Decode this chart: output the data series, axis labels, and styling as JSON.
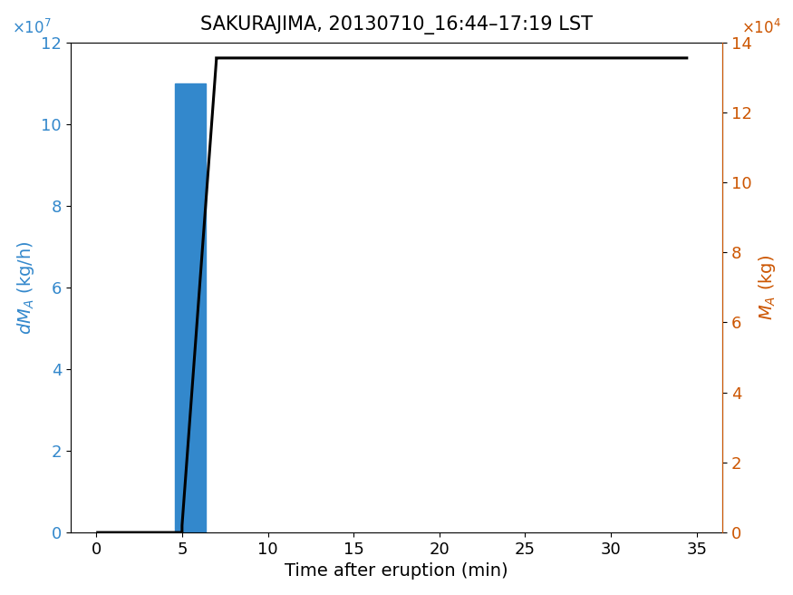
{
  "title": "SAKURAJIMA, 20130710_16:44–17:19 LST",
  "xlabel": "Time after eruption (min)",
  "ylabel_left": "dM_A (kg/h)",
  "ylabel_right": "M_A (kg)",
  "xlim": [
    -1.5,
    36.5
  ],
  "ylim_left": [
    0,
    120000000.0
  ],
  "ylim_right": [
    0,
    140000.0
  ],
  "bar_x": 5.5,
  "bar_width": 1.8,
  "bar_height": 110000000.0,
  "bar_color": "#3388cc",
  "line_x": [
    0,
    5.0,
    5.0,
    7.0,
    7.0,
    34.5
  ],
  "line_y": [
    0,
    0,
    2000,
    135000.0,
    135500.0,
    135500.0
  ],
  "line_color": "#000000",
  "line_width": 2.2,
  "left_axis_color": "#3388cc",
  "right_axis_color": "#cc5500",
  "title_fontsize": 15,
  "label_fontsize": 14,
  "tick_fontsize": 13,
  "xticks": [
    0,
    5,
    10,
    15,
    20,
    25,
    30,
    35
  ],
  "yticks_left": [
    0,
    20000000.0,
    40000000.0,
    60000000.0,
    80000000.0,
    100000000.0,
    120000000.0
  ],
  "yticks_right": [
    0,
    20000.0,
    40000.0,
    60000.0,
    80000.0,
    100000.0,
    120000.0,
    140000.0
  ],
  "fig_width": 8.75,
  "fig_height": 6.56,
  "dpi": 100
}
